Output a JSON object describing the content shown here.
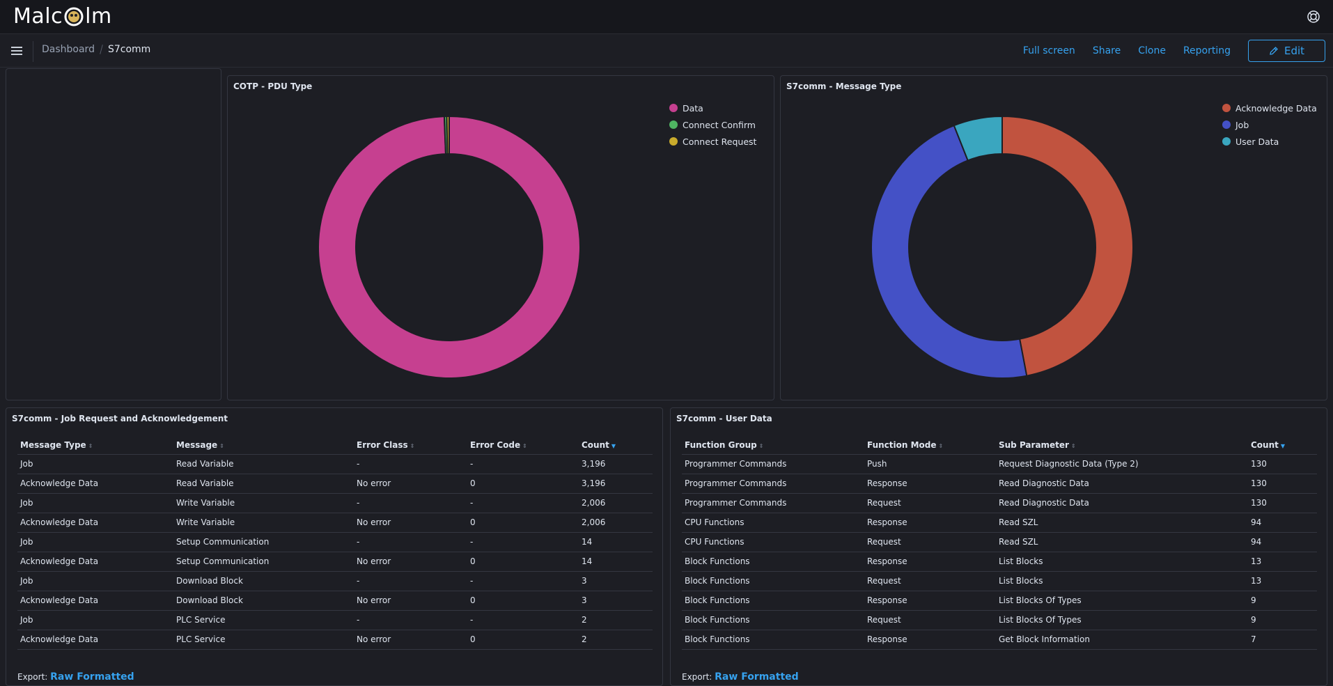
{
  "app": {
    "logo_left": "Malc",
    "logo_right": "lm"
  },
  "breadcrumb": {
    "parent": "Dashboard",
    "current": "S7comm"
  },
  "actions": {
    "full_screen": "Full screen",
    "share": "Share",
    "clone": "Clone",
    "reporting": "Reporting",
    "edit": "Edit"
  },
  "cotp_panel": {
    "title": "COTP - PDU Type",
    "legend": [
      "Data",
      "Connect Confirm",
      "Connect Request"
    ]
  },
  "msgtype_panel": {
    "title": "S7comm - Message Type",
    "legend": [
      "Acknowledge Data",
      "Job",
      "User Data"
    ]
  },
  "chart_data": [
    {
      "type": "pie",
      "title": "COTP - PDU Type",
      "labels": [
        "Data",
        "Connect Confirm",
        "Connect Request"
      ],
      "values": [
        99.4,
        0.3,
        0.3
      ],
      "colors": [
        "#c64090",
        "#4fb462",
        "#c9ab2c"
      ]
    },
    {
      "type": "pie",
      "title": "S7comm - Message Type",
      "labels": [
        "Acknowledge Data",
        "Job",
        "User Data"
      ],
      "values": [
        47,
        47,
        6
      ],
      "colors": [
        "#c1533f",
        "#4451c6",
        "#3aa6bf"
      ]
    }
  ],
  "job_table": {
    "title": "S7comm - Job Request and Acknowledgement",
    "headers": [
      "Message Type",
      "Message",
      "Error Class",
      "Error Code",
      "Count"
    ],
    "rows": [
      [
        "Job",
        "Read Variable",
        "-",
        "-",
        "3,196"
      ],
      [
        "Acknowledge Data",
        "Read Variable",
        "No error",
        "0",
        "3,196"
      ],
      [
        "Job",
        "Write Variable",
        "-",
        "-",
        "2,006"
      ],
      [
        "Acknowledge Data",
        "Write Variable",
        "No error",
        "0",
        "2,006"
      ],
      [
        "Job",
        "Setup Communication",
        "-",
        "-",
        "14"
      ],
      [
        "Acknowledge Data",
        "Setup Communication",
        "No error",
        "0",
        "14"
      ],
      [
        "Job",
        "Download Block",
        "-",
        "-",
        "3"
      ],
      [
        "Acknowledge Data",
        "Download Block",
        "No error",
        "0",
        "3"
      ],
      [
        "Job",
        "PLC Service",
        "-",
        "-",
        "2"
      ],
      [
        "Acknowledge Data",
        "PLC Service",
        "No error",
        "0",
        "2"
      ]
    ],
    "footer_prefix": "Export:",
    "footer_link": "Raw Formatted"
  },
  "user_table": {
    "title": "S7comm - User Data",
    "headers": [
      "Function Group",
      "Function Mode",
      "Sub Parameter",
      "Count"
    ],
    "rows": [
      [
        "Programmer Commands",
        "Push",
        "Request Diagnostic Data (Type 2)",
        "130"
      ],
      [
        "Programmer Commands",
        "Response",
        "Read Diagnostic Data",
        "130"
      ],
      [
        "Programmer Commands",
        "Request",
        "Read Diagnostic Data",
        "130"
      ],
      [
        "CPU Functions",
        "Response",
        "Read SZL",
        "94"
      ],
      [
        "CPU Functions",
        "Request",
        "Read SZL",
        "94"
      ],
      [
        "Block Functions",
        "Response",
        "List Blocks",
        "13"
      ],
      [
        "Block Functions",
        "Request",
        "List Blocks",
        "13"
      ],
      [
        "Block Functions",
        "Response",
        "List Blocks Of Types",
        "9"
      ],
      [
        "Block Functions",
        "Request",
        "List Blocks Of Types",
        "9"
      ],
      [
        "Block Functions",
        "Response",
        "Get Block Information",
        "7"
      ]
    ],
    "footer_prefix": "Export:",
    "footer_link": "Raw Formatted"
  }
}
